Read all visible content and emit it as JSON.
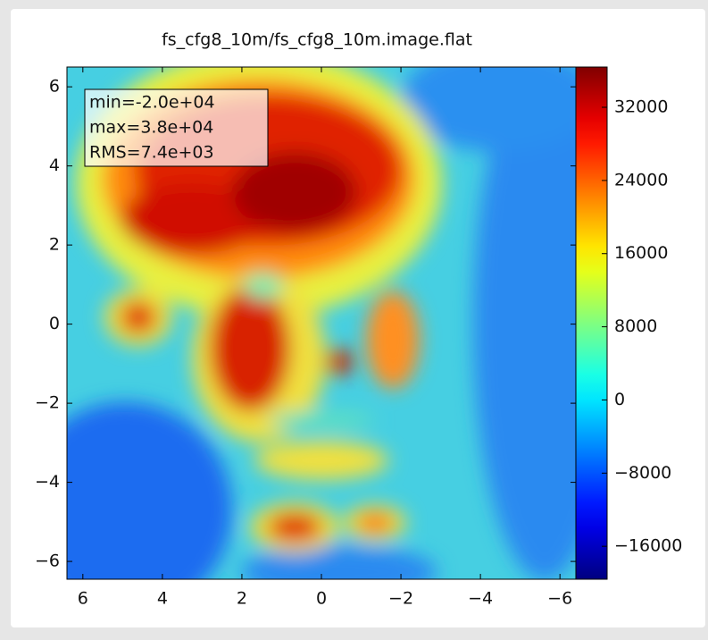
{
  "chart_data": {
    "type": "image",
    "title": "fs_cfg8_10m/fs_cfg8_10m.image.flat",
    "annotations": [
      "min=-2.0e+04",
      "max=3.8e+04",
      "RMS=7.4e+03"
    ],
    "xlim": [
      6.4,
      -6.4
    ],
    "xticks": [
      6,
      4,
      2,
      0,
      {
        "value": -2,
        "label": "−2"
      },
      {
        "value": -4,
        "label": "−4"
      },
      {
        "value": -6,
        "label": "−6"
      }
    ],
    "ylim": [
      -6.45,
      6.5
    ],
    "yticks": [
      6,
      4,
      2,
      0,
      {
        "value": -2,
        "label": "−2"
      },
      {
        "value": -4,
        "label": "−4"
      },
      {
        "value": -6,
        "label": "−6"
      }
    ],
    "colormap": "jet",
    "clim": [
      -19600,
      36400
    ],
    "cticks": [
      32000,
      24000,
      16000,
      8000,
      0,
      {
        "value": -8000,
        "label": "−8000"
      },
      {
        "value": -16000,
        "label": "−16000"
      }
    ]
  }
}
